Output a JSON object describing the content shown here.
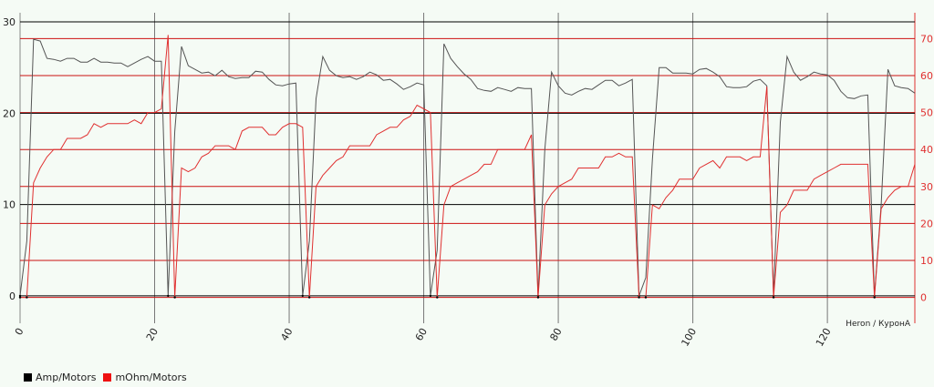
{
  "chart_data": {
    "type": "line",
    "annotation": "Heron / КуронА",
    "xlim": [
      0,
      133
    ],
    "x_ticks": [
      0,
      20,
      40,
      60,
      80,
      100,
      120
    ],
    "y_left": {
      "lim": [
        -3,
        31
      ],
      "ticks": [
        0,
        10,
        20,
        30
      ]
    },
    "y_right": {
      "lim": [
        -7,
        77
      ],
      "ticks": [
        0,
        10,
        20,
        30,
        40,
        50,
        60,
        70
      ]
    },
    "grid": "on",
    "legend_position": "bottom-left",
    "series": [
      {
        "name": "Amp/Motors",
        "axis": "left",
        "color": "#555555",
        "points": [
          [
            0,
            0
          ],
          [
            1,
            6
          ],
          [
            2,
            28.1
          ],
          [
            3,
            27.9
          ],
          [
            4,
            26
          ],
          [
            5,
            25.9
          ],
          [
            6,
            25.7
          ],
          [
            7,
            26
          ],
          [
            8,
            26
          ],
          [
            9,
            25.6
          ],
          [
            10,
            25.6
          ],
          [
            11,
            26
          ],
          [
            12,
            25.6
          ],
          [
            13,
            25.6
          ],
          [
            14,
            25.5
          ],
          [
            15,
            25.5
          ],
          [
            16,
            25.1
          ],
          [
            17,
            25.5
          ],
          [
            18,
            25.9
          ],
          [
            19,
            26.2
          ],
          [
            20,
            25.7
          ],
          [
            21,
            25.7
          ],
          [
            22,
            0
          ],
          [
            23,
            18
          ],
          [
            24,
            27.3
          ],
          [
            25,
            25.2
          ],
          [
            26,
            24.8
          ],
          [
            27,
            24.4
          ],
          [
            28,
            24.5
          ],
          [
            29,
            24.1
          ],
          [
            30,
            24.7
          ],
          [
            31,
            24
          ],
          [
            32,
            23.8
          ],
          [
            33,
            23.9
          ],
          [
            34,
            23.9
          ],
          [
            35,
            24.6
          ],
          [
            36,
            24.5
          ],
          [
            37,
            23.7
          ],
          [
            38,
            23.1
          ],
          [
            39,
            23
          ],
          [
            40,
            23.2
          ],
          [
            41,
            23.3
          ],
          [
            42,
            0
          ],
          [
            43,
            6
          ],
          [
            44,
            21.6
          ],
          [
            45,
            26.2
          ],
          [
            46,
            24.7
          ],
          [
            47,
            24.1
          ],
          [
            48,
            23.9
          ],
          [
            49,
            24
          ],
          [
            50,
            23.7
          ],
          [
            51,
            24
          ],
          [
            52,
            24.5
          ],
          [
            53,
            24.2
          ],
          [
            54,
            23.6
          ],
          [
            55,
            23.7
          ],
          [
            56,
            23.2
          ],
          [
            57,
            22.6
          ],
          [
            58,
            22.9
          ],
          [
            59,
            23.3
          ],
          [
            60,
            23.1
          ],
          [
            61,
            0
          ],
          [
            62,
            5
          ],
          [
            63,
            27.6
          ],
          [
            64,
            26
          ],
          [
            65,
            25.1
          ],
          [
            66,
            24.3
          ],
          [
            67,
            23.7
          ],
          [
            68,
            22.7
          ],
          [
            69,
            22.5
          ],
          [
            70,
            22.4
          ],
          [
            71,
            22.8
          ],
          [
            72,
            22.6
          ],
          [
            73,
            22.4
          ],
          [
            74,
            22.8
          ],
          [
            75,
            22.7
          ],
          [
            76,
            22.7
          ],
          [
            77,
            0
          ],
          [
            78,
            16
          ],
          [
            79,
            24.5
          ],
          [
            80,
            23
          ],
          [
            81,
            22.2
          ],
          [
            82,
            22
          ],
          [
            83,
            22.4
          ],
          [
            84,
            22.7
          ],
          [
            85,
            22.6
          ],
          [
            86,
            23.1
          ],
          [
            87,
            23.6
          ],
          [
            88,
            23.6
          ],
          [
            89,
            23
          ],
          [
            90,
            23.3
          ],
          [
            91,
            23.7
          ],
          [
            92,
            0
          ],
          [
            93,
            2
          ],
          [
            94,
            15
          ],
          [
            95,
            25
          ],
          [
            96,
            25
          ],
          [
            97,
            24.4
          ],
          [
            98,
            24.4
          ],
          [
            99,
            24.4
          ],
          [
            100,
            24.3
          ],
          [
            101,
            24.8
          ],
          [
            102,
            24.9
          ],
          [
            103,
            24.5
          ],
          [
            104,
            24
          ],
          [
            105,
            22.9
          ],
          [
            106,
            22.8
          ],
          [
            107,
            22.8
          ],
          [
            108,
            22.9
          ],
          [
            109,
            23.5
          ],
          [
            110,
            23.7
          ],
          [
            111,
            23
          ],
          [
            112,
            0
          ],
          [
            113,
            19
          ],
          [
            114,
            26.2
          ],
          [
            115,
            24.5
          ],
          [
            116,
            23.6
          ],
          [
            117,
            24
          ],
          [
            118,
            24.5
          ],
          [
            119,
            24.3
          ],
          [
            120,
            24.2
          ],
          [
            121,
            23.6
          ],
          [
            122,
            22.4
          ],
          [
            123,
            21.7
          ],
          [
            124,
            21.6
          ],
          [
            125,
            21.9
          ],
          [
            126,
            22
          ],
          [
            127,
            0
          ],
          [
            128,
            10
          ],
          [
            129,
            24.8
          ],
          [
            130,
            23
          ],
          [
            131,
            22.8
          ],
          [
            132,
            22.7
          ],
          [
            133,
            22.2
          ]
        ]
      },
      {
        "name": "mOhm/Motors",
        "axis": "right",
        "color": "#e03030",
        "points": [
          [
            0,
            0
          ],
          [
            1,
            0
          ],
          [
            2,
            31
          ],
          [
            3,
            35
          ],
          [
            4,
            38
          ],
          [
            5,
            40
          ],
          [
            6,
            40
          ],
          [
            7,
            43
          ],
          [
            8,
            43
          ],
          [
            9,
            43
          ],
          [
            10,
            44
          ],
          [
            11,
            47
          ],
          [
            12,
            46
          ],
          [
            13,
            47
          ],
          [
            14,
            47
          ],
          [
            15,
            47
          ],
          [
            16,
            47
          ],
          [
            17,
            48
          ],
          [
            18,
            47
          ],
          [
            19,
            50
          ],
          [
            20,
            50
          ],
          [
            21,
            51
          ],
          [
            22,
            71
          ],
          [
            23,
            0
          ],
          [
            24,
            35
          ],
          [
            25,
            34
          ],
          [
            26,
            35
          ],
          [
            27,
            38
          ],
          [
            28,
            39
          ],
          [
            29,
            41
          ],
          [
            30,
            41
          ],
          [
            31,
            41
          ],
          [
            32,
            40
          ],
          [
            33,
            45
          ],
          [
            34,
            46
          ],
          [
            35,
            46
          ],
          [
            36,
            46
          ],
          [
            37,
            44
          ],
          [
            38,
            44
          ],
          [
            39,
            46
          ],
          [
            40,
            47
          ],
          [
            41,
            47
          ],
          [
            42,
            46
          ],
          [
            43,
            0
          ],
          [
            44,
            30
          ],
          [
            45,
            33
          ],
          [
            46,
            35
          ],
          [
            47,
            37
          ],
          [
            48,
            38
          ],
          [
            49,
            41
          ],
          [
            50,
            41
          ],
          [
            51,
            41
          ],
          [
            52,
            41
          ],
          [
            53,
            44
          ],
          [
            54,
            45
          ],
          [
            55,
            46
          ],
          [
            56,
            46
          ],
          [
            57,
            48
          ],
          [
            58,
            49
          ],
          [
            59,
            52
          ],
          [
            60,
            51
          ],
          [
            61,
            50
          ],
          [
            62,
            0
          ],
          [
            63,
            25
          ],
          [
            64,
            30
          ],
          [
            65,
            31
          ],
          [
            66,
            32
          ],
          [
            67,
            33
          ],
          [
            68,
            34
          ],
          [
            69,
            36
          ],
          [
            70,
            36
          ],
          [
            71,
            40
          ],
          [
            72,
            40
          ],
          [
            73,
            40
          ],
          [
            74,
            40
          ],
          [
            75,
            40
          ],
          [
            76,
            44
          ],
          [
            77,
            0
          ],
          [
            78,
            25
          ],
          [
            79,
            28
          ],
          [
            80,
            30
          ],
          [
            81,
            31
          ],
          [
            82,
            32
          ],
          [
            83,
            35
          ],
          [
            84,
            35
          ],
          [
            85,
            35
          ],
          [
            86,
            35
          ],
          [
            87,
            38
          ],
          [
            88,
            38
          ],
          [
            89,
            39
          ],
          [
            90,
            38
          ],
          [
            91,
            38
          ],
          [
            92,
            0
          ],
          [
            93,
            0
          ],
          [
            94,
            25
          ],
          [
            95,
            24
          ],
          [
            96,
            27
          ],
          [
            97,
            29
          ],
          [
            98,
            32
          ],
          [
            99,
            32
          ],
          [
            100,
            32
          ],
          [
            101,
            35
          ],
          [
            102,
            36
          ],
          [
            103,
            37
          ],
          [
            104,
            35
          ],
          [
            105,
            38
          ],
          [
            106,
            38
          ],
          [
            107,
            38
          ],
          [
            108,
            37
          ],
          [
            109,
            38
          ],
          [
            110,
            38
          ],
          [
            111,
            57
          ],
          [
            112,
            0
          ],
          [
            113,
            23
          ],
          [
            114,
            25
          ],
          [
            115,
            29
          ],
          [
            116,
            29
          ],
          [
            117,
            29
          ],
          [
            118,
            32
          ],
          [
            119,
            33
          ],
          [
            120,
            34
          ],
          [
            121,
            35
          ],
          [
            122,
            36
          ],
          [
            123,
            36
          ],
          [
            124,
            36
          ],
          [
            125,
            36
          ],
          [
            126,
            36
          ],
          [
            127,
            0
          ],
          [
            128,
            24
          ],
          [
            129,
            27
          ],
          [
            130,
            29
          ],
          [
            131,
            30
          ],
          [
            132,
            30
          ],
          [
            133,
            36
          ]
        ]
      }
    ]
  },
  "colors": {
    "background": "#f5fbf5",
    "left_axis_text": "#222222",
    "right_axis_text": "#e03030",
    "black_grid": "#000000",
    "red_grid": "#cc1111",
    "vertical_grid": "#777777"
  }
}
